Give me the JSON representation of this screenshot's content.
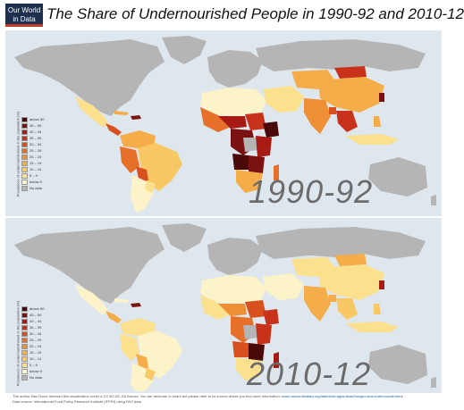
{
  "logo": {
    "line1": "Our World",
    "line2": "in Data"
  },
  "title": "The Share of Undernourished People in 1990-92 and 2010-12",
  "maps": [
    {
      "year_label": "1990-92"
    },
    {
      "year_label": "2010-12"
    }
  ],
  "legend": {
    "axis_title": "Prevalence of undernourishment in the population (%)",
    "items": [
      {
        "label": "above 50",
        "color": "#4a0a0a"
      },
      {
        "label": "45 – 50",
        "color": "#7a1212"
      },
      {
        "label": "40 – 44",
        "color": "#a81a14"
      },
      {
        "label": "35 – 39",
        "color": "#c8321a"
      },
      {
        "label": "30 – 34",
        "color": "#d9501f"
      },
      {
        "label": "25 – 29",
        "color": "#e66f2a"
      },
      {
        "label": "20 – 24",
        "color": "#ee8f35"
      },
      {
        "label": "15 – 19",
        "color": "#f4ad48"
      },
      {
        "label": "10 – 14",
        "color": "#f8c865"
      },
      {
        "label": "5 – 9",
        "color": "#fbe08e"
      },
      {
        "label": "below 5",
        "color": "#fdf3c8"
      },
      {
        "label": "No data",
        "color": "#b5b5b5"
      }
    ]
  },
  "colors": {
    "ocean": "#dfe7ee",
    "no_data": "#b5b5b5",
    "below_5": "#fdf3c8"
  },
  "footer": {
    "line1": "The author Max Roser licensed this visualization under a CC BY-NC-SA license. You are welcome to share but please refer to its source where you find more information:",
    "link": "www.ourworldindata.org/data/food-agriculture/hunger-and-undernourishment",
    "line2": "Data source: International Food Policy Research Institute (IFPRI) using FAO data"
  }
}
